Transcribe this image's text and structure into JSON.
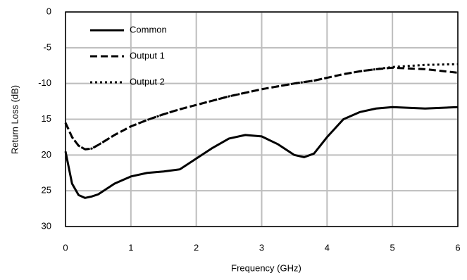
{
  "chart_data": {
    "type": "line",
    "x_label": "Frequency (GHz)",
    "y_label": "Return Loss (dB)",
    "x": [
      0,
      0.1,
      0.2,
      0.3,
      0.4,
      0.5,
      0.75,
      1,
      1.25,
      1.5,
      1.75,
      2,
      2.25,
      2.5,
      2.75,
      3,
      3.25,
      3.5,
      3.65,
      3.8,
      4,
      4.25,
      4.5,
      4.75,
      5,
      5.5,
      6
    ],
    "series": [
      {
        "name": "Common",
        "color": "#000000",
        "line_style": "solid",
        "values": [
          -19.5,
          -24,
          -25.6,
          -26,
          -25.8,
          -25.5,
          -24,
          -23,
          -22.5,
          -22.3,
          -22,
          -20.5,
          -19,
          -17.7,
          -17.2,
          -17.4,
          -18.5,
          -20,
          -20.3,
          -19.8,
          -17.5,
          -15,
          -14,
          -13.5,
          -13.3,
          -13.5,
          -13.3
        ]
      },
      {
        "name": "Output 1",
        "color": "#000000",
        "line_style": "dashed",
        "values": [
          -15.5,
          -17.5,
          -18.7,
          -19.2,
          -19.1,
          -18.6,
          -17.2,
          -16,
          -15.1,
          -14.3,
          -13.6,
          -13,
          -12.4,
          -11.8,
          -11.3,
          -10.8,
          -10.4,
          -10,
          -9.8,
          -9.6,
          -9.2,
          -8.7,
          -8.3,
          -8,
          -7.8,
          -8,
          -8.5
        ]
      },
      {
        "name": "Output 2",
        "color": "#000000",
        "line_style": "dotted",
        "values": [
          -15.5,
          -17.5,
          -18.7,
          -19.2,
          -19.1,
          -18.6,
          -17.2,
          -16,
          -15.1,
          -14.3,
          -13.6,
          -13,
          -12.4,
          -11.8,
          -11.3,
          -10.8,
          -10.4,
          -10,
          -9.8,
          -9.6,
          -9.2,
          -8.7,
          -8.3,
          -8,
          -7.7,
          -7.4,
          -7.3
        ]
      }
    ],
    "xlim": [
      0,
      6
    ],
    "xticks": [
      0,
      1,
      2,
      3,
      4,
      5,
      6
    ],
    "ylim": [
      -30,
      0
    ],
    "yticks": [
      0,
      -5,
      -10,
      {
        "value": -15,
        "label": "15"
      },
      {
        "value": -20,
        "label": "20"
      },
      {
        "value": -25,
        "label": "25"
      },
      {
        "value": -30,
        "label": "30"
      }
    ],
    "grid": true,
    "legend": "upper-left"
  }
}
